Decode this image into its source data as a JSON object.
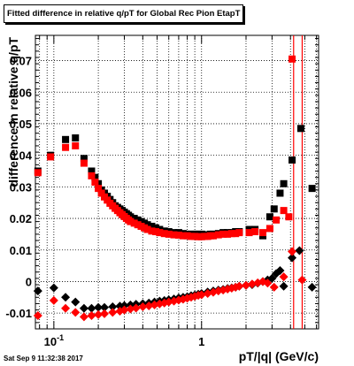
{
  "chart_data": {
    "type": "scatter",
    "title": "Fitted difference in relative q/pT for Global Rec Pion EtapT",
    "xlabel": "pT/|q| (GeV/c)",
    "ylabel": "difference in relative q/pT",
    "xscale": "log",
    "xlim": [
      0.075,
      6.2
    ],
    "ylim": [
      -0.015,
      0.078
    ],
    "grid": true,
    "x_tick_labels": [
      {
        "value": 0.1,
        "label": "10^-1"
      },
      {
        "value": 1,
        "label": "1"
      }
    ],
    "y_tick_labels": [
      {
        "value": -0.01,
        "label": "-0.01"
      },
      {
        "value": 0,
        "label": "0"
      },
      {
        "value": 0.01,
        "label": "0.01"
      },
      {
        "value": 0.02,
        "label": "0.02"
      },
      {
        "value": 0.03,
        "label": "0.03"
      },
      {
        "value": 0.04,
        "label": "0.04"
      },
      {
        "value": 0.05,
        "label": "0.05"
      },
      {
        "value": 0.06,
        "label": "0.06"
      },
      {
        "value": 0.07,
        "label": "0.07"
      }
    ],
    "vertical_lines": [
      {
        "x": 4.2,
        "color": "#ff0000"
      },
      {
        "x": 4.8,
        "color": "#ff0000"
      }
    ],
    "series": [
      {
        "marker": "square",
        "color": "#000000",
        "points": [
          [
            0.078,
            0.035
          ],
          [
            0.095,
            0.04
          ],
          [
            0.12,
            0.045
          ],
          [
            0.14,
            0.0455
          ],
          [
            0.16,
            0.039
          ],
          [
            0.18,
            0.035
          ],
          [
            0.19,
            0.033
          ],
          [
            0.2,
            0.031
          ],
          [
            0.21,
            0.029
          ],
          [
            0.22,
            0.028
          ],
          [
            0.23,
            0.027
          ],
          [
            0.24,
            0.026
          ],
          [
            0.25,
            0.025
          ],
          [
            0.26,
            0.024
          ],
          [
            0.27,
            0.0235
          ],
          [
            0.28,
            0.023
          ],
          [
            0.29,
            0.0225
          ],
          [
            0.3,
            0.022
          ],
          [
            0.31,
            0.0215
          ],
          [
            0.32,
            0.021
          ],
          [
            0.33,
            0.0205
          ],
          [
            0.35,
            0.02
          ],
          [
            0.37,
            0.0195
          ],
          [
            0.39,
            0.019
          ],
          [
            0.41,
            0.0185
          ],
          [
            0.43,
            0.018
          ],
          [
            0.46,
            0.0175
          ],
          [
            0.49,
            0.017
          ],
          [
            0.52,
            0.0165
          ],
          [
            0.56,
            0.016
          ],
          [
            0.6,
            0.0158
          ],
          [
            0.65,
            0.0155
          ],
          [
            0.7,
            0.0155
          ],
          [
            0.75,
            0.0152
          ],
          [
            0.8,
            0.015
          ],
          [
            0.85,
            0.015
          ],
          [
            0.9,
            0.015
          ],
          [
            0.95,
            0.015
          ],
          [
            1.0,
            0.015
          ],
          [
            1.05,
            0.0148
          ],
          [
            1.1,
            0.0148
          ],
          [
            1.15,
            0.015
          ],
          [
            1.2,
            0.015
          ],
          [
            1.3,
            0.0152
          ],
          [
            1.4,
            0.0155
          ],
          [
            1.5,
            0.0155
          ],
          [
            1.6,
            0.0155
          ],
          [
            1.7,
            0.0158
          ],
          [
            1.8,
            0.0158
          ],
          [
            2.1,
            0.0165
          ],
          [
            2.3,
            0.0165
          ],
          [
            2.6,
            0.0145
          ],
          [
            2.9,
            0.0205
          ],
          [
            3.1,
            0.023
          ],
          [
            3.4,
            0.028
          ],
          [
            3.6,
            0.031
          ],
          [
            4.1,
            0.0385
          ],
          [
            4.7,
            0.0485
          ],
          [
            5.6,
            0.0295
          ]
        ]
      },
      {
        "marker": "square",
        "color": "#ff0000",
        "points": [
          [
            0.078,
            0.0345
          ],
          [
            0.095,
            0.0395
          ],
          [
            0.12,
            0.0425
          ],
          [
            0.14,
            0.043
          ],
          [
            0.16,
            0.0375
          ],
          [
            0.18,
            0.0335
          ],
          [
            0.19,
            0.0315
          ],
          [
            0.2,
            0.0295
          ],
          [
            0.21,
            0.028
          ],
          [
            0.22,
            0.0268
          ],
          [
            0.23,
            0.0258
          ],
          [
            0.24,
            0.0248
          ],
          [
            0.25,
            0.024
          ],
          [
            0.26,
            0.0232
          ],
          [
            0.27,
            0.0225
          ],
          [
            0.28,
            0.0218
          ],
          [
            0.29,
            0.0212
          ],
          [
            0.3,
            0.0206
          ],
          [
            0.31,
            0.02
          ],
          [
            0.32,
            0.0195
          ],
          [
            0.33,
            0.019
          ],
          [
            0.35,
            0.0185
          ],
          [
            0.37,
            0.018
          ],
          [
            0.39,
            0.0175
          ],
          [
            0.41,
            0.017
          ],
          [
            0.43,
            0.0165
          ],
          [
            0.46,
            0.016
          ],
          [
            0.49,
            0.0158
          ],
          [
            0.52,
            0.0155
          ],
          [
            0.56,
            0.0152
          ],
          [
            0.6,
            0.015
          ],
          [
            0.65,
            0.0148
          ],
          [
            0.7,
            0.0147
          ],
          [
            0.75,
            0.0145
          ],
          [
            0.8,
            0.0145
          ],
          [
            0.85,
            0.0143
          ],
          [
            0.9,
            0.0143
          ],
          [
            0.95,
            0.0142
          ],
          [
            1.0,
            0.0142
          ],
          [
            1.05,
            0.0143
          ],
          [
            1.1,
            0.0143
          ],
          [
            1.15,
            0.0145
          ],
          [
            1.2,
            0.0145
          ],
          [
            1.3,
            0.0148
          ],
          [
            1.4,
            0.015
          ],
          [
            1.5,
            0.015
          ],
          [
            1.6,
            0.0152
          ],
          [
            1.7,
            0.0152
          ],
          [
            1.8,
            0.0155
          ],
          [
            2.1,
            0.0155
          ],
          [
            2.3,
            0.0158
          ],
          [
            2.6,
            0.0155
          ],
          [
            2.9,
            0.0168
          ],
          [
            3.2,
            0.0195
          ],
          [
            3.6,
            0.0225
          ],
          [
            3.9,
            0.0205
          ],
          [
            4.1,
            0.0705
          ]
        ]
      },
      {
        "marker": "diamond",
        "color": "#000000",
        "points": [
          [
            0.078,
            -0.003
          ],
          [
            0.1,
            -0.002
          ],
          [
            0.12,
            -0.005
          ],
          [
            0.14,
            -0.0065
          ],
          [
            0.16,
            -0.0085
          ],
          [
            0.18,
            -0.0085
          ],
          [
            0.2,
            -0.0082
          ],
          [
            0.22,
            -0.0082
          ],
          [
            0.25,
            -0.008
          ],
          [
            0.28,
            -0.0078
          ],
          [
            0.3,
            -0.0076
          ],
          [
            0.33,
            -0.0074
          ],
          [
            0.36,
            -0.0072
          ],
          [
            0.4,
            -0.007
          ],
          [
            0.44,
            -0.0068
          ],
          [
            0.48,
            -0.0065
          ],
          [
            0.52,
            -0.0062
          ],
          [
            0.56,
            -0.006
          ],
          [
            0.6,
            -0.0058
          ],
          [
            0.65,
            -0.0055
          ],
          [
            0.7,
            -0.0052
          ],
          [
            0.75,
            -0.005
          ],
          [
            0.8,
            -0.0048
          ],
          [
            0.85,
            -0.0045
          ],
          [
            0.9,
            -0.0043
          ],
          [
            0.95,
            -0.004
          ],
          [
            1.0,
            -0.0038
          ],
          [
            1.1,
            -0.0033
          ],
          [
            1.2,
            -0.003
          ],
          [
            1.3,
            -0.0027
          ],
          [
            1.4,
            -0.0025
          ],
          [
            1.5,
            -0.0022
          ],
          [
            1.6,
            -0.002
          ],
          [
            1.7,
            -0.0018
          ],
          [
            1.8,
            -0.0015
          ],
          [
            2.0,
            -0.0012
          ],
          [
            2.2,
            -0.001
          ],
          [
            2.4,
            -0.0005
          ],
          [
            2.6,
            0.0
          ],
          [
            2.8,
            0.0005
          ],
          [
            3.0,
            0.001
          ],
          [
            3.2,
            0.0025
          ],
          [
            3.4,
            0.0035
          ],
          [
            3.6,
            -0.0015
          ],
          [
            4.1,
            0.0075
          ],
          [
            4.6,
            0.0098
          ],
          [
            5.6,
            -0.0018
          ]
        ]
      },
      {
        "marker": "diamond",
        "color": "#ff0000",
        "points": [
          [
            0.078,
            -0.0108
          ],
          [
            0.1,
            -0.006
          ],
          [
            0.12,
            -0.0085
          ],
          [
            0.14,
            -0.0098
          ],
          [
            0.16,
            -0.0112
          ],
          [
            0.18,
            -0.0108
          ],
          [
            0.2,
            -0.0105
          ],
          [
            0.22,
            -0.0102
          ],
          [
            0.25,
            -0.0098
          ],
          [
            0.28,
            -0.0094
          ],
          [
            0.3,
            -0.009
          ],
          [
            0.33,
            -0.0087
          ],
          [
            0.36,
            -0.0084
          ],
          [
            0.4,
            -0.008
          ],
          [
            0.44,
            -0.0077
          ],
          [
            0.48,
            -0.0074
          ],
          [
            0.52,
            -0.0071
          ],
          [
            0.56,
            -0.0068
          ],
          [
            0.6,
            -0.0065
          ],
          [
            0.65,
            -0.0062
          ],
          [
            0.7,
            -0.0059
          ],
          [
            0.75,
            -0.0056
          ],
          [
            0.8,
            -0.0053
          ],
          [
            0.85,
            -0.005
          ],
          [
            0.9,
            -0.0047
          ],
          [
            0.95,
            -0.0044
          ],
          [
            1.0,
            -0.0042
          ],
          [
            1.1,
            -0.0038
          ],
          [
            1.2,
            -0.0034
          ],
          [
            1.3,
            -0.003
          ],
          [
            1.4,
            -0.0027
          ],
          [
            1.5,
            -0.0024
          ],
          [
            1.6,
            -0.0021
          ],
          [
            1.7,
            -0.0018
          ],
          [
            1.8,
            -0.0015
          ],
          [
            2.0,
            -0.0012
          ],
          [
            2.2,
            -0.0008
          ],
          [
            2.4,
            -0.0004
          ],
          [
            2.6,
            0.0
          ],
          [
            2.8,
            -0.0005
          ],
          [
            3.1,
            -0.0018
          ],
          [
            3.6,
            0.0015
          ],
          [
            4.1,
            0.0095
          ],
          [
            4.8,
            0.0005
          ]
        ]
      }
    ]
  },
  "timestamp": "Sat Sep  9 11:32:38 2017"
}
